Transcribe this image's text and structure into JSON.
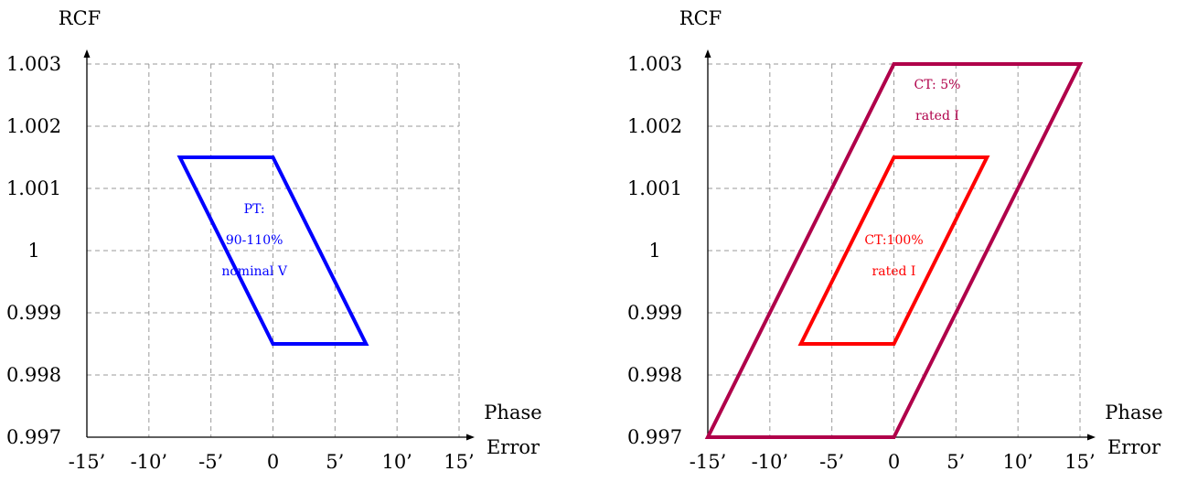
{
  "chart_data": [
    {
      "type": "line",
      "ylabel": "RCF",
      "xlabel_lines": [
        "Phase",
        "Error"
      ],
      "x_ticks": [
        -15,
        -10,
        -5,
        0,
        5,
        10,
        15
      ],
      "x_tick_labels": [
        "-15’",
        "-10’",
        "-5’",
        "0",
        "5’",
        "10’",
        "15’"
      ],
      "y_ticks": [
        0.997,
        0.998,
        0.999,
        1.0,
        1.001,
        1.002,
        1.003
      ],
      "y_tick_labels": [
        "0.997",
        "0.998",
        "0.999",
        "1",
        "1.001",
        "1.002",
        "1.003"
      ],
      "xlim": [
        -15,
        15
      ],
      "ylim": [
        0.997,
        1.003
      ],
      "grid": true,
      "series": [
        {
          "color": "#0000ff",
          "points": [
            [
              -7.5,
              1.0015
            ],
            [
              0,
              1.0015
            ],
            [
              7.5,
              0.9985
            ],
            [
              0,
              0.9985
            ]
          ],
          "label_lines": [
            "PT:",
            "90-110%",
            "nominal V"
          ],
          "label_anchor": [
            -1.5,
            1.0006
          ]
        }
      ]
    },
    {
      "type": "line",
      "ylabel": "RCF",
      "xlabel_lines": [
        "Phase",
        "Error"
      ],
      "x_ticks": [
        -15,
        -10,
        -5,
        0,
        5,
        10,
        15
      ],
      "x_tick_labels": [
        "-15’",
        "-10’",
        "-5’",
        "0",
        "5’",
        "10’",
        "15’"
      ],
      "y_ticks": [
        0.997,
        0.998,
        0.999,
        1.0,
        1.001,
        1.002,
        1.003
      ],
      "y_tick_labels": [
        "0.997",
        "0.998",
        "0.999",
        "1",
        "1.001",
        "1.002",
        "1.003"
      ],
      "xlim": [
        -15,
        15
      ],
      "ylim": [
        0.997,
        1.003
      ],
      "grid": true,
      "series": [
        {
          "color": "#b0004a",
          "points": [
            [
              -15,
              0.997
            ],
            [
              0,
              0.997
            ],
            [
              15,
              1.003
            ],
            [
              0,
              1.003
            ]
          ],
          "label_lines": [
            "CT: 5%",
            "rated I"
          ],
          "label_anchor": [
            3.5,
            1.0026
          ]
        },
        {
          "color": "#ff0000",
          "points": [
            [
              -7.5,
              0.9985
            ],
            [
              0,
              0.9985
            ],
            [
              7.5,
              1.0015
            ],
            [
              0,
              1.0015
            ]
          ],
          "label_lines": [
            "CT:100%",
            "rated I"
          ],
          "label_anchor": [
            0,
            1.0001
          ]
        }
      ]
    }
  ]
}
